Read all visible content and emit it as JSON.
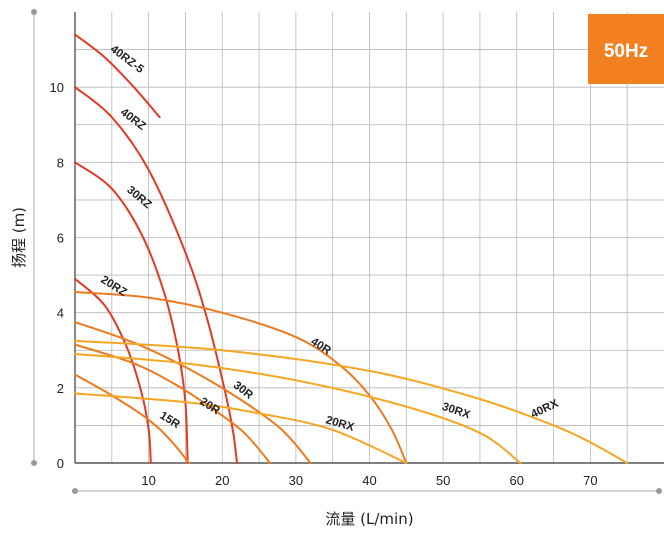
{
  "chart_data": {
    "type": "line",
    "xlabel": "流量 (L/min)",
    "ylabel": "扬程 (m)",
    "xlim": [
      0,
      80
    ],
    "ylim": [
      0,
      12
    ],
    "x_ticks": [
      10,
      20,
      30,
      40,
      50,
      60,
      70
    ],
    "y_ticks": [
      0,
      2,
      4,
      6,
      8,
      10
    ],
    "grid": true,
    "badge": {
      "label": "50Hz",
      "color": "#F28020"
    },
    "colors": {
      "red": "#E13A26",
      "orange": "#ED7A1E",
      "amber": "#F5A623",
      "grid": "#B8B8B8",
      "axis": "#555555"
    },
    "series": [
      {
        "name": "40RZ-5",
        "color": "#E13A26",
        "points": [
          [
            0,
            11.4
          ],
          [
            4,
            10.8
          ],
          [
            8,
            10.0
          ],
          [
            11.5,
            9.2
          ]
        ]
      },
      {
        "name": "40RZ",
        "color": "#E13A26",
        "points": [
          [
            0,
            10.0
          ],
          [
            5,
            9.2
          ],
          [
            10,
            7.8
          ],
          [
            15,
            5.6
          ],
          [
            18,
            3.8
          ],
          [
            20.5,
            1.8
          ],
          [
            21.5,
            0.8
          ],
          [
            22,
            0
          ]
        ]
      },
      {
        "name": "30RZ",
        "color": "#E13A26",
        "points": [
          [
            0,
            8.0
          ],
          [
            5,
            7.3
          ],
          [
            9,
            6.1
          ],
          [
            12,
            4.6
          ],
          [
            14,
            3.0
          ],
          [
            15,
            1.6
          ],
          [
            15.3,
            0
          ]
        ]
      },
      {
        "name": "20RZ",
        "color": "#E13A26",
        "points": [
          [
            0,
            4.9
          ],
          [
            4,
            4.2
          ],
          [
            7,
            3.1
          ],
          [
            9,
            1.9
          ],
          [
            10,
            0.9
          ],
          [
            10.3,
            0
          ]
        ]
      },
      {
        "name": "40R",
        "color": "#ED7A1E",
        "points": [
          [
            0,
            4.55
          ],
          [
            10,
            4.4
          ],
          [
            20,
            4.0
          ],
          [
            30,
            3.35
          ],
          [
            36,
            2.6
          ],
          [
            40,
            1.8
          ],
          [
            43,
            0.9
          ],
          [
            45,
            0
          ]
        ]
      },
      {
        "name": "30R",
        "color": "#ED7A1E",
        "points": [
          [
            0,
            3.75
          ],
          [
            8,
            3.2
          ],
          [
            15,
            2.55
          ],
          [
            22,
            1.75
          ],
          [
            28,
            0.9
          ],
          [
            32,
            0
          ]
        ]
      },
      {
        "name": "20R",
        "color": "#ED7A1E",
        "points": [
          [
            0,
            3.15
          ],
          [
            8,
            2.65
          ],
          [
            14,
            2.05
          ],
          [
            19,
            1.4
          ],
          [
            23,
            0.8
          ],
          [
            26.5,
            0
          ]
        ]
      },
      {
        "name": "15R",
        "color": "#ED7A1E",
        "points": [
          [
            0,
            2.35
          ],
          [
            5,
            1.8
          ],
          [
            10,
            1.15
          ],
          [
            13,
            0.6
          ],
          [
            15.5,
            0
          ]
        ]
      },
      {
        "name": "20RX",
        "color": "#F5A623",
        "points": [
          [
            0,
            1.85
          ],
          [
            15,
            1.62
          ],
          [
            25,
            1.32
          ],
          [
            35,
            0.88
          ],
          [
            45,
            0
          ]
        ]
      },
      {
        "name": "30RX",
        "color": "#F5A623",
        "points": [
          [
            0,
            2.9
          ],
          [
            15,
            2.65
          ],
          [
            30,
            2.2
          ],
          [
            45,
            1.5
          ],
          [
            55,
            0.8
          ],
          [
            60.5,
            0
          ]
        ]
      },
      {
        "name": "40RX",
        "color": "#F5A623",
        "points": [
          [
            0,
            3.25
          ],
          [
            20,
            3.0
          ],
          [
            40,
            2.45
          ],
          [
            55,
            1.7
          ],
          [
            65,
            1.0
          ],
          [
            70,
            0.55
          ],
          [
            75,
            0
          ]
        ]
      }
    ]
  }
}
